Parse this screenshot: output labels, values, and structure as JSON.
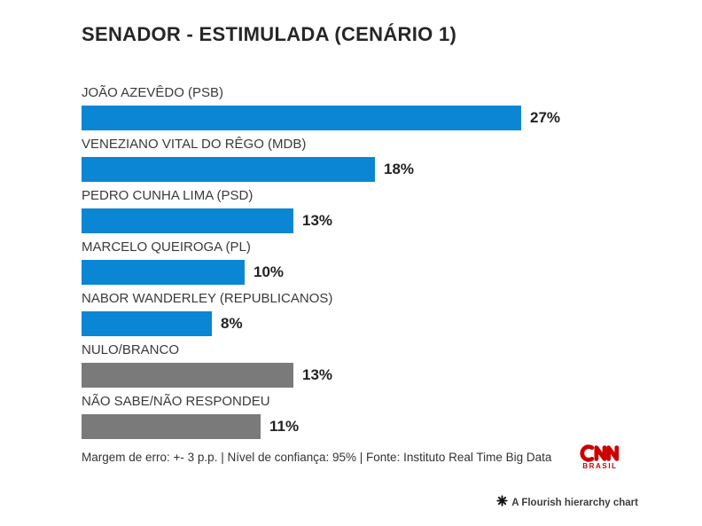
{
  "header": {
    "title": "SENADOR - ESTIMULADA (CENÁRIO 1)"
  },
  "chart_data": {
    "type": "bar",
    "orientation": "horizontal",
    "title": "SENADOR - ESTIMULADA (CENÁRIO 1)",
    "categories": [
      "JOÃO AZEVÊDO (PSB)",
      "VENEZIANO VITAL DO RÊGO (MDB)",
      "PEDRO CUNHA LIMA (PSD)",
      "MARCELO QUEIROGA (PL)",
      "NABOR WANDERLEY (REPUBLICANOS)",
      "NULO/BRANCO",
      "NÃO SABE/NÃO RESPONDEU"
    ],
    "values": [
      27,
      18,
      13,
      10,
      8,
      13,
      11
    ],
    "value_labels": [
      "27%",
      "18%",
      "13%",
      "10%",
      "8%",
      "13%",
      "11%"
    ],
    "colors": [
      "#0a86d5",
      "#0a86d5",
      "#0a86d5",
      "#0a86d5",
      "#0a86d5",
      "#7a7a7a",
      "#7a7a7a"
    ],
    "axis_max": 27,
    "grid": false,
    "legend": "none",
    "value_label_position": "outside-end",
    "xlabel": "",
    "ylabel": ""
  },
  "palette": {
    "candidate_bar_blue": "#0a86d5",
    "neutral_bar_gray": "#7a7a7a",
    "title_text": "#262626",
    "label_text": "#3a3a3a",
    "value_text": "#222222",
    "cnn_red": "#cc0000"
  },
  "footer": {
    "note": "Margem de erro: +- 3 p.p. | Nível de confiança: 95% | Fonte: Instituto Real Time Big Data"
  },
  "branding": {
    "logo_text": "CNN",
    "logo_subtext": "BRASIL"
  },
  "attribution": {
    "icon": "flourish-flower-icon",
    "text": "A Flourish hierarchy chart"
  }
}
